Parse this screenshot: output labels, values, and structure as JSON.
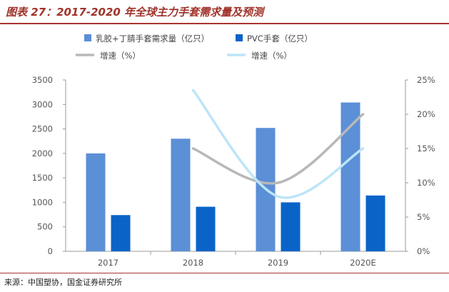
{
  "header": {
    "title": "图表 27：2017-2020 年全球主力手套需求量及预测"
  },
  "footer": {
    "source": "来源：中国塑协，国金证券研究所"
  },
  "chart_data": {
    "type": "bar",
    "categories": [
      "2017",
      "2018",
      "2019",
      "2020E"
    ],
    "series": [
      {
        "name": "乳胶+丁腈手套需求量（亿只）",
        "kind": "bar",
        "axis": "left",
        "color": "#5b8fd6",
        "values": [
          2000,
          2300,
          2520,
          3040
        ]
      },
      {
        "name": "PVC手套（亿只）",
        "kind": "bar",
        "axis": "left",
        "color": "#0a64c8",
        "values": [
          740,
          910,
          1000,
          1140
        ]
      },
      {
        "name": "增速（%）",
        "kind": "line",
        "axis": "right",
        "color": "#b8b8b8",
        "values": [
          null,
          15,
          10,
          20
        ]
      },
      {
        "name": "增速（%）",
        "kind": "line",
        "axis": "right",
        "color": "#bde5f7",
        "values": [
          null,
          23.5,
          8,
          15
        ]
      }
    ],
    "y_left": {
      "min": 0,
      "max": 3500,
      "ticks": [
        "0",
        "500",
        "1000",
        "1500",
        "2000",
        "2500",
        "3000",
        "3500"
      ]
    },
    "y_right": {
      "min": 0,
      "max": 25,
      "ticks": [
        "0%",
        "5%",
        "10%",
        "15%",
        "20%",
        "25%"
      ]
    },
    "legend_position": "top",
    "grid": false
  }
}
